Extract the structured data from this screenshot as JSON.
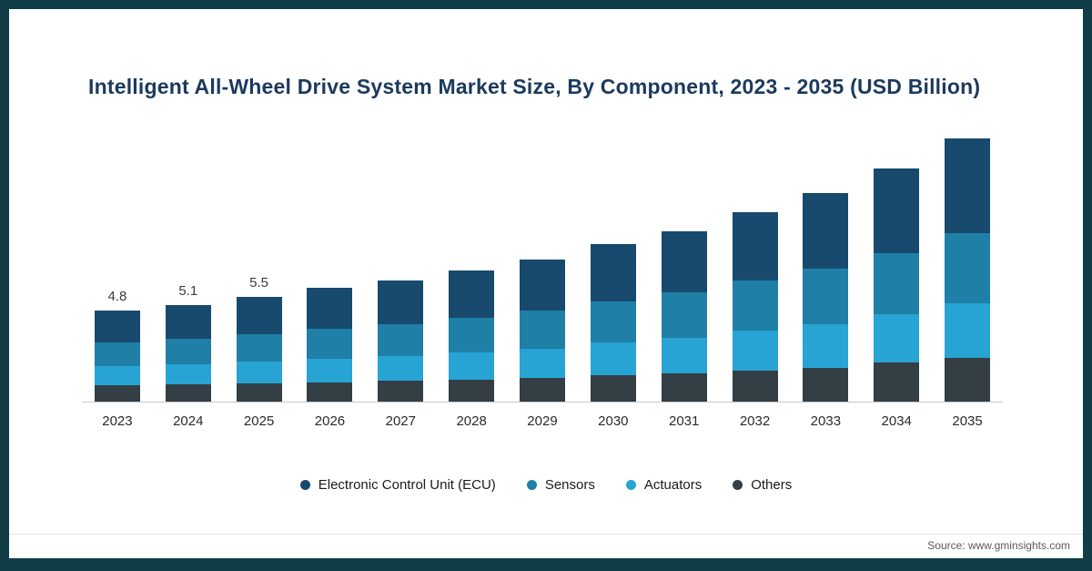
{
  "page": {
    "title": "Intelligent All-Wheel Drive System Market Size, By Component, 2023 - 2035 (USD Billion)",
    "source": "Source: www.gminsights.com"
  },
  "colors": {
    "frame": "#103d46",
    "title": "#1b3a5c",
    "axis_line": "#c9c9c9"
  },
  "chart_data": {
    "type": "bar",
    "stacked": true,
    "title": "Intelligent All-Wheel Drive System Market Size, By Component, 2023 - 2035 (USD Billion)",
    "xlabel": "",
    "ylabel": "USD Billion",
    "grid": false,
    "legend_position": "bottom",
    "ylim": [
      0,
      14.5
    ],
    "categories": [
      "2023",
      "2024",
      "2025",
      "2026",
      "2027",
      "2028",
      "2029",
      "2030",
      "2031",
      "2032",
      "2033",
      "2034",
      "2035"
    ],
    "series": [
      {
        "name": "Electronic Control Unit (ECU)",
        "color": "#174a6d",
        "values": [
          1.7,
          1.8,
          1.95,
          2.15,
          2.3,
          2.5,
          2.7,
          3.0,
          3.25,
          3.6,
          4.0,
          4.45,
          5.0
        ]
      },
      {
        "name": "Sensors",
        "color": "#1f7fa6",
        "values": [
          1.25,
          1.35,
          1.45,
          1.6,
          1.7,
          1.8,
          2.0,
          2.2,
          2.4,
          2.65,
          2.9,
          3.25,
          3.7
        ]
      },
      {
        "name": "Actuators",
        "color": "#27a4d3",
        "values": [
          1.0,
          1.05,
          1.15,
          1.25,
          1.3,
          1.45,
          1.55,
          1.7,
          1.85,
          2.1,
          2.3,
          2.55,
          2.9
        ]
      },
      {
        "name": "Others",
        "color": "#333e45",
        "values": [
          0.85,
          0.9,
          0.95,
          1.0,
          1.1,
          1.15,
          1.25,
          1.4,
          1.5,
          1.65,
          1.8,
          2.05,
          2.3
        ]
      }
    ],
    "totals": [
      4.8,
      5.1,
      5.5,
      6.0,
      6.4,
      6.9,
      7.5,
      8.3,
      9.0,
      10.0,
      11.0,
      12.3,
      13.9
    ],
    "total_labels": [
      "4.8",
      "5.1",
      "5.5",
      "",
      "",
      "",
      "",
      "",
      "",
      "",
      "",
      "",
      ""
    ]
  }
}
